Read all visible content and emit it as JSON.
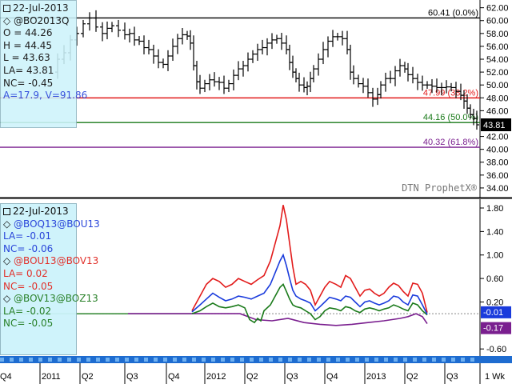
{
  "colors": {
    "black": "#000000",
    "red": "#e21b1b",
    "green": "#1a7a1a",
    "purple": "#7a1f8f",
    "blue": "#1a3bdc",
    "grey": "#888888",
    "bar": "#1e6cd0"
  },
  "top_info": {
    "date": "22-Jul-2013",
    "symbol": "@BO2013Q",
    "open": "O = 44.26",
    "high": "H = 44.45",
    "low": "L = 43.63",
    "last": "LA= 43.81",
    "net": "NC= -0.45",
    "vol": "A=17.9, V=91.86"
  },
  "bottom_info": {
    "date": "22-Jul-2013",
    "s1": {
      "name": "@BOQ13@BOU13",
      "la": "LA= -0.01",
      "nc": "NC= -0.06"
    },
    "s2": {
      "name": "@BOU13@BOV13",
      "la": "LA= 0.02",
      "nc": "NC= -0.05"
    },
    "s3": {
      "name": "@BOV13@BOZ13",
      "la": "LA= -0.02",
      "nc": "NC= -0.05"
    }
  },
  "watermark": "DTN ProphetX®",
  "interval_label": "1 Wk",
  "chart_data": [
    {
      "type": "line",
      "kind": "ohlc-bars",
      "symbol": "@BO2013Q",
      "y_range": [
        32.5,
        63.2
      ],
      "y_ticks": [
        "62.00",
        "60.00",
        "58.00",
        "56.00",
        "54.00",
        "52.00",
        "50.00",
        "48.00",
        "46.00",
        "42.00",
        "40.00",
        "38.00",
        "36.00",
        "34.00"
      ],
      "y_tick_values": [
        62,
        60,
        58,
        56,
        54,
        52,
        50,
        48,
        46,
        42,
        40,
        38,
        36,
        34
      ],
      "last_value_tag": "43.81",
      "last_value": 43.81,
      "levels": [
        {
          "label": "60.41 (0.0%)",
          "value": 60.41,
          "color": "black"
        },
        {
          "label": "47.99 (38.2%)",
          "value": 47.99,
          "color": "red"
        },
        {
          "label": "44.16 (50.0%)",
          "value": 44.16,
          "color": "green"
        },
        {
          "label": "40.32 (61.8%)",
          "value": 40.32,
          "color": "purple"
        }
      ],
      "close_path": [
        [
          0,
          52
        ],
        [
          10,
          54
        ],
        [
          18,
          55
        ],
        [
          26,
          57
        ],
        [
          34,
          58
        ],
        [
          42,
          59.5
        ],
        [
          50,
          60.4
        ],
        [
          58,
          59
        ],
        [
          66,
          58
        ],
        [
          72,
          58.8
        ],
        [
          78,
          59.2
        ],
        [
          86,
          58.5
        ],
        [
          94,
          57.8
        ],
        [
          100,
          58
        ],
        [
          106,
          57
        ],
        [
          112,
          56.8
        ],
        [
          118,
          55.8
        ],
        [
          124,
          55.5
        ],
        [
          130,
          54.5
        ],
        [
          136,
          53.5
        ],
        [
          142,
          53.2
        ],
        [
          148,
          54.5
        ],
        [
          154,
          56
        ],
        [
          160,
          57.2
        ],
        [
          166,
          57.8
        ],
        [
          172,
          57.6
        ],
        [
          176,
          56.5
        ],
        [
          180,
          53
        ],
        [
          184,
          50.5
        ],
        [
          188,
          49.5
        ],
        [
          194,
          50.2
        ],
        [
          200,
          50.8
        ],
        [
          206,
          50.5
        ],
        [
          212,
          50.4
        ],
        [
          218,
          49.5
        ],
        [
          224,
          50.2
        ],
        [
          230,
          51.5
        ],
        [
          236,
          52.5
        ],
        [
          242,
          53
        ],
        [
          248,
          54
        ],
        [
          254,
          54.8
        ],
        [
          260,
          55.5
        ],
        [
          266,
          55.8
        ],
        [
          272,
          56.5
        ],
        [
          278,
          57
        ],
        [
          284,
          57.2
        ],
        [
          290,
          56.5
        ],
        [
          296,
          55.5
        ],
        [
          300,
          53.5
        ],
        [
          304,
          52
        ],
        [
          308,
          51
        ],
        [
          312,
          50
        ],
        [
          318,
          49.6
        ],
        [
          322,
          49.8
        ],
        [
          326,
          51
        ],
        [
          330,
          52.5
        ],
        [
          336,
          54
        ],
        [
          342,
          55.5
        ],
        [
          348,
          56.8
        ],
        [
          354,
          57.5
        ],
        [
          360,
          57.5
        ],
        [
          366,
          57.2
        ],
        [
          372,
          55.5
        ],
        [
          376,
          52
        ],
        [
          380,
          51
        ],
        [
          386,
          50.2
        ],
        [
          392,
          49.8
        ],
        [
          398,
          48.8
        ],
        [
          404,
          47.8
        ],
        [
          410,
          48.5
        ],
        [
          414,
          50
        ],
        [
          420,
          51
        ],
        [
          426,
          51
        ],
        [
          432,
          52.2
        ],
        [
          438,
          53
        ],
        [
          444,
          52.5
        ],
        [
          448,
          51.6
        ],
        [
          454,
          51
        ],
        [
          460,
          50.4
        ],
        [
          466,
          50
        ],
        [
          472,
          50
        ],
        [
          478,
          49.8
        ],
        [
          484,
          49.6
        ],
        [
          490,
          49.6
        ],
        [
          496,
          49.7
        ],
        [
          502,
          49.6
        ],
        [
          508,
          49
        ],
        [
          514,
          48.4
        ],
        [
          518,
          47.5
        ],
        [
          522,
          46.4
        ],
        [
          526,
          45.4
        ],
        [
          530,
          44.8
        ],
        [
          534,
          43.81
        ]
      ]
    },
    {
      "type": "line",
      "kind": "spreads",
      "y_range": [
        -0.72,
        1.95
      ],
      "y_ticks": [
        "1.80",
        "1.40",
        "1.00",
        "0.60",
        "0.20",
        "-0.60"
      ],
      "y_tick_values": [
        1.8,
        1.4,
        1.0,
        0.6,
        0.2,
        -0.6
      ],
      "value_tags": [
        {
          "label": "-0.01",
          "value": -0.01,
          "color": "blue"
        },
        {
          "label": "-0.17",
          "value": -0.17,
          "color": "purple"
        }
      ],
      "zero_line": 0,
      "x_labels": [
        {
          "label": "Q4",
          "t": -10
        },
        {
          "label": "2011",
          "t": 42
        },
        {
          "label": "Q2",
          "t": 92
        },
        {
          "label": "Q3",
          "t": 148
        },
        {
          "label": "Q4",
          "t": 200
        },
        {
          "label": "2012",
          "t": 248
        },
        {
          "label": "Q2",
          "t": 298
        },
        {
          "label": "Q3",
          "t": 348
        },
        {
          "label": "Q4",
          "t": 398
        },
        {
          "label": "2013",
          "t": 448
        },
        {
          "label": "Q2",
          "t": 498
        },
        {
          "label": "Q3",
          "t": 548
        }
      ],
      "series": [
        {
          "name": "@BOU13@BOV13",
          "color": "red",
          "points": [
            [
              240,
              0.05
            ],
            [
              250,
              0.3
            ],
            [
              258,
              0.5
            ],
            [
              266,
              0.6
            ],
            [
              274,
              0.55
            ],
            [
              282,
              0.45
            ],
            [
              290,
              0.5
            ],
            [
              298,
              0.6
            ],
            [
              306,
              0.55
            ],
            [
              314,
              0.5
            ],
            [
              322,
              0.58
            ],
            [
              330,
              0.65
            ],
            [
              338,
              0.9
            ],
            [
              344,
              1.2
            ],
            [
              350,
              1.5
            ],
            [
              354,
              1.85
            ],
            [
              358,
              1.6
            ],
            [
              362,
              1.2
            ],
            [
              366,
              0.8
            ],
            [
              370,
              0.5
            ],
            [
              376,
              0.55
            ],
            [
              382,
              0.5
            ],
            [
              388,
              0.4
            ],
            [
              394,
              0.15
            ],
            [
              400,
              0.3
            ],
            [
              406,
              0.45
            ],
            [
              412,
              0.55
            ],
            [
              420,
              0.5
            ],
            [
              426,
              0.45
            ],
            [
              432,
              0.65
            ],
            [
              438,
              0.6
            ],
            [
              444,
              0.45
            ],
            [
              450,
              0.3
            ],
            [
              456,
              0.4
            ],
            [
              462,
              0.42
            ],
            [
              468,
              0.35
            ],
            [
              474,
              0.3
            ],
            [
              480,
              0.35
            ],
            [
              486,
              0.45
            ],
            [
              492,
              0.52
            ],
            [
              498,
              0.48
            ],
            [
              504,
              0.38
            ],
            [
              510,
              0.3
            ],
            [
              516,
              0.52
            ],
            [
              522,
              0.5
            ],
            [
              528,
              0.35
            ],
            [
              534,
              0.02
            ]
          ]
        },
        {
          "name": "@BOQ13@BOU13",
          "color": "blue",
          "points": [
            [
              240,
              0.03
            ],
            [
              250,
              0.15
            ],
            [
              258,
              0.25
            ],
            [
              266,
              0.35
            ],
            [
              274,
              0.28
            ],
            [
              282,
              0.22
            ],
            [
              290,
              0.25
            ],
            [
              298,
              0.3
            ],
            [
              306,
              0.28
            ],
            [
              314,
              0.25
            ],
            [
              322,
              0.3
            ],
            [
              330,
              0.35
            ],
            [
              338,
              0.5
            ],
            [
              344,
              0.7
            ],
            [
              350,
              0.9
            ],
            [
              354,
              1.0
            ],
            [
              358,
              0.82
            ],
            [
              362,
              0.6
            ],
            [
              366,
              0.4
            ],
            [
              370,
              0.3
            ],
            [
              376,
              0.25
            ],
            [
              382,
              0.22
            ],
            [
              388,
              0.18
            ],
            [
              394,
              0.05
            ],
            [
              400,
              0.12
            ],
            [
              406,
              0.2
            ],
            [
              412,
              0.28
            ],
            [
              420,
              0.25
            ],
            [
              426,
              0.22
            ],
            [
              432,
              0.3
            ],
            [
              438,
              0.28
            ],
            [
              444,
              0.2
            ],
            [
              450,
              0.12
            ],
            [
              456,
              0.2
            ],
            [
              462,
              0.22
            ],
            [
              468,
              0.18
            ],
            [
              474,
              0.15
            ],
            [
              480,
              0.18
            ],
            [
              486,
              0.22
            ],
            [
              492,
              0.3
            ],
            [
              498,
              0.28
            ],
            [
              504,
              0.2
            ],
            [
              510,
              0.15
            ],
            [
              516,
              0.32
            ],
            [
              522,
              0.3
            ],
            [
              528,
              0.15
            ],
            [
              534,
              -0.01
            ]
          ]
        },
        {
          "name": "@BOV13@BOZ13",
          "color": "green",
          "points": [
            [
              240,
              0
            ],
            [
              250,
              0.05
            ],
            [
              258,
              0.12
            ],
            [
              266,
              0.18
            ],
            [
              274,
              0.12
            ],
            [
              282,
              0.1
            ],
            [
              290,
              0.12
            ],
            [
              298,
              0.15
            ],
            [
              306,
              0.1
            ],
            [
              312,
              -0.1
            ],
            [
              318,
              -0.15
            ],
            [
              322,
              -0.08
            ],
            [
              326,
              -0.12
            ],
            [
              330,
              0.05
            ],
            [
              338,
              0.15
            ],
            [
              344,
              0.3
            ],
            [
              350,
              0.45
            ],
            [
              354,
              0.5
            ],
            [
              358,
              0.38
            ],
            [
              362,
              0.25
            ],
            [
              366,
              0.15
            ],
            [
              370,
              0.12
            ],
            [
              376,
              0.1
            ],
            [
              382,
              0.05
            ],
            [
              388,
              0.0
            ],
            [
              394,
              -0.1
            ],
            [
              400,
              -0.05
            ],
            [
              406,
              0.05
            ],
            [
              412,
              0.1
            ],
            [
              420,
              0.08
            ],
            [
              426,
              0.05
            ],
            [
              432,
              0.12
            ],
            [
              438,
              0.1
            ],
            [
              444,
              0.05
            ],
            [
              450,
              0.02
            ],
            [
              456,
              0.08
            ],
            [
              462,
              0.1
            ],
            [
              468,
              0.08
            ],
            [
              474,
              0.05
            ],
            [
              480,
              0.08
            ],
            [
              486,
              0.1
            ],
            [
              492,
              0.15
            ],
            [
              498,
              0.12
            ],
            [
              504,
              0.08
            ],
            [
              510,
              0.05
            ],
            [
              516,
              0.18
            ],
            [
              522,
              0.15
            ],
            [
              528,
              0.05
            ],
            [
              534,
              -0.02
            ]
          ]
        },
        {
          "name": "purple",
          "color": "purple",
          "points": [
            [
              160,
              0
            ],
            [
              240,
              0
            ],
            [
              300,
              0
            ],
            [
              320,
              -0.1
            ],
            [
              340,
              -0.12
            ],
            [
              360,
              -0.08
            ],
            [
              380,
              -0.15
            ],
            [
              400,
              -0.18
            ],
            [
              420,
              -0.2
            ],
            [
              440,
              -0.18
            ],
            [
              460,
              -0.15
            ],
            [
              480,
              -0.12
            ],
            [
              500,
              -0.08
            ],
            [
              510,
              -0.05
            ],
            [
              520,
              0.0
            ],
            [
              528,
              -0.05
            ],
            [
              534,
              -0.17
            ]
          ]
        }
      ]
    }
  ]
}
